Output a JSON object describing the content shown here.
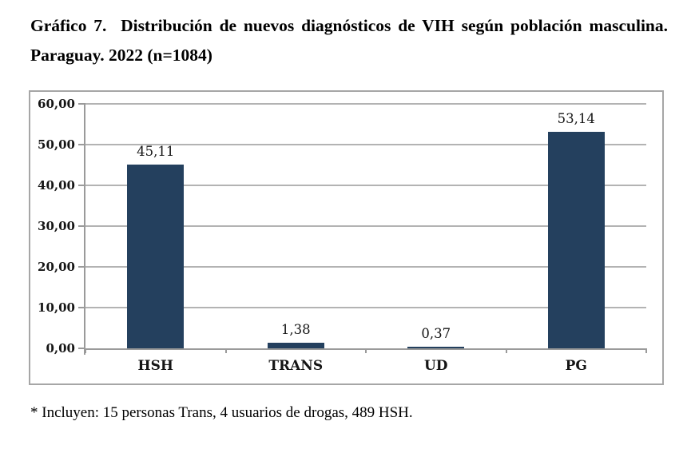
{
  "title": {
    "line1": "Gráfico 7.  Distribución de nuevos diagnósticos de VIH según población masculina.",
    "line2": "Paraguay. 2022 (n=1084)"
  },
  "footnote": "* Incluyen: 15 personas Trans, 4 usuarios de drogas, 489 HSH.",
  "chart_data": {
    "type": "bar",
    "categories": [
      "HSH",
      "TRANS",
      "UD",
      "PG"
    ],
    "values": [
      45.11,
      1.38,
      0.37,
      53.14
    ],
    "value_labels": [
      "45,11",
      "1,38",
      "0,37",
      "53,14"
    ],
    "ytick_labels": [
      "0,00",
      "10,00",
      "20,00",
      "30,00",
      "40,00",
      "50,00",
      "60,00"
    ],
    "ylim": [
      0,
      60
    ],
    "ytick_step": 10,
    "grid": true,
    "legend": false,
    "xlabel": "",
    "ylabel": "",
    "bar_color": "#24405E",
    "gridline_color": "#b3b3b3",
    "axis_color": "#9a9a9a"
  }
}
